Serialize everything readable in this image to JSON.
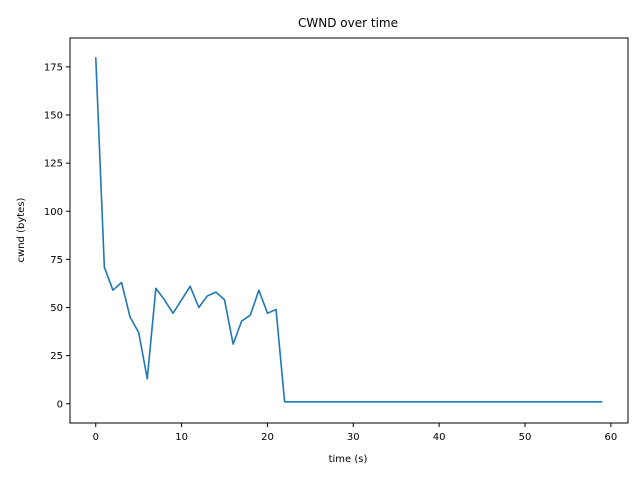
{
  "chart_data": {
    "type": "line",
    "title": "CWND over time",
    "xlabel": "time (s)",
    "ylabel": "cwnd (bytes)",
    "xlim": [
      -3,
      62
    ],
    "ylim": [
      -10,
      190
    ],
    "x_ticks": [
      0,
      10,
      20,
      30,
      40,
      50,
      60
    ],
    "y_ticks": [
      0,
      25,
      50,
      75,
      100,
      125,
      150,
      175
    ],
    "grid": false,
    "legend": "none",
    "series": [
      {
        "color": "#1f77b4",
        "x": [
          0,
          1,
          2,
          3,
          4,
          5,
          6,
          7,
          8,
          9,
          10,
          11,
          12,
          13,
          14,
          15,
          16,
          17,
          18,
          19,
          20,
          21,
          22,
          23,
          24,
          25,
          26,
          27,
          28,
          29,
          30,
          31,
          32,
          33,
          34,
          35,
          36,
          37,
          38,
          39,
          40,
          41,
          42,
          43,
          44,
          45,
          46,
          47,
          48,
          49,
          50,
          51,
          52,
          53,
          54,
          55,
          56,
          57,
          58,
          59
        ],
        "y": [
          180,
          71,
          59,
          63,
          45,
          37,
          13,
          60,
          54,
          47,
          54,
          61,
          50,
          56,
          58,
          54,
          31,
          43,
          46,
          59,
          47,
          49,
          1,
          1,
          1,
          1,
          1,
          1,
          1,
          1,
          1,
          1,
          1,
          1,
          1,
          1,
          1,
          1,
          1,
          1,
          1,
          1,
          1,
          1,
          1,
          1,
          1,
          1,
          1,
          1,
          1,
          1,
          1,
          1,
          1,
          1,
          1,
          1,
          1,
          1
        ]
      }
    ]
  }
}
